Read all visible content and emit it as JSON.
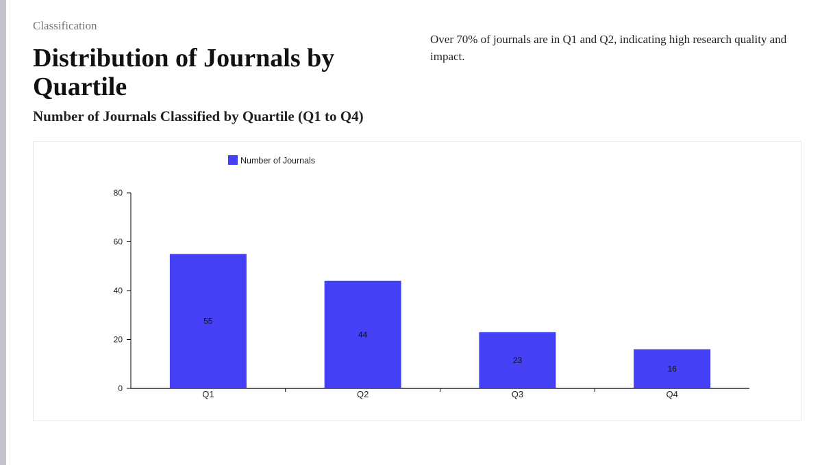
{
  "header": {
    "kicker": "Classification",
    "title": "Distribution of Journals by Quartile",
    "subtitle": "Number of Journals Classified by Quartile (Q1 to Q4)"
  },
  "insight": "Over 70% of journals are in Q1 and Q2, indicating high research quality and impact.",
  "colors": {
    "bar": "#4340f5",
    "axis": "#000000"
  },
  "chart_data": {
    "type": "bar",
    "title": "Number of Journals Classified by Quartile (Q1 to Q4)",
    "categories": [
      "Q1",
      "Q2",
      "Q3",
      "Q4"
    ],
    "series": [
      {
        "name": "Number of Journals",
        "values": [
          55,
          44,
          23,
          16
        ]
      }
    ],
    "ylim": [
      0,
      80
    ],
    "yticks": [
      0,
      20,
      40,
      60,
      80
    ],
    "xlabel": "",
    "ylabel": "",
    "legend": "top",
    "data_labels": true,
    "grid": false
  }
}
